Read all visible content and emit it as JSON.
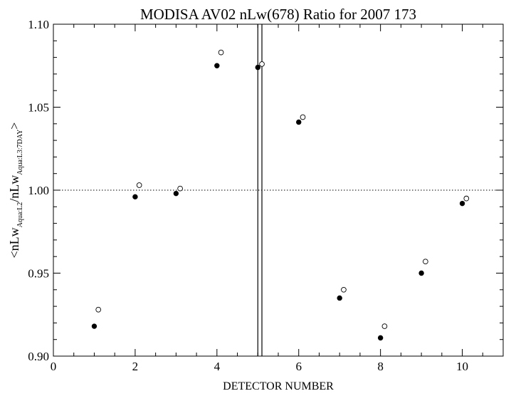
{
  "chart_data": {
    "type": "scatter",
    "title": "MODISA AV02 nLw(678) Ratio for 2007 173",
    "xlabel": "DETECTOR NUMBER",
    "ylabel": {
      "open": "<nLw",
      "sub1": "Aqua:L2",
      "mid": "/nLw",
      "sub2": "Aqua:L3:7DAY",
      "close": ">"
    },
    "xlim": [
      0,
      11
    ],
    "ylim": [
      0.9,
      1.1
    ],
    "x_ticks": [
      0,
      2,
      4,
      6,
      8,
      10
    ],
    "x_tick_labels": [
      "0",
      "2",
      "4",
      "6",
      "8",
      "10"
    ],
    "y_ticks": [
      0.9,
      0.95,
      1.0,
      1.05,
      1.1
    ],
    "y_tick_labels": [
      "0.90",
      "0.95",
      "1.00",
      "1.05",
      "1.10"
    ],
    "reference_line": {
      "y": 1.0,
      "style": "dotted"
    },
    "vertical_lines": [
      5.0,
      5.1
    ],
    "grid": false,
    "series": [
      {
        "marker": "filled-circle",
        "x": [
          1,
          2,
          3,
          4,
          5,
          6,
          7,
          8,
          9,
          10
        ],
        "values": [
          0.918,
          0.996,
          0.998,
          1.075,
          1.074,
          1.041,
          0.935,
          0.911,
          0.95,
          0.992
        ]
      },
      {
        "marker": "open-circle",
        "x": [
          1.1,
          2.1,
          3.1,
          4.1,
          5.1,
          6.1,
          7.1,
          8.1,
          9.1,
          10.1
        ],
        "values": [
          0.928,
          1.003,
          1.001,
          1.083,
          1.076,
          1.044,
          0.94,
          0.918,
          0.957,
          0.995
        ]
      }
    ]
  }
}
